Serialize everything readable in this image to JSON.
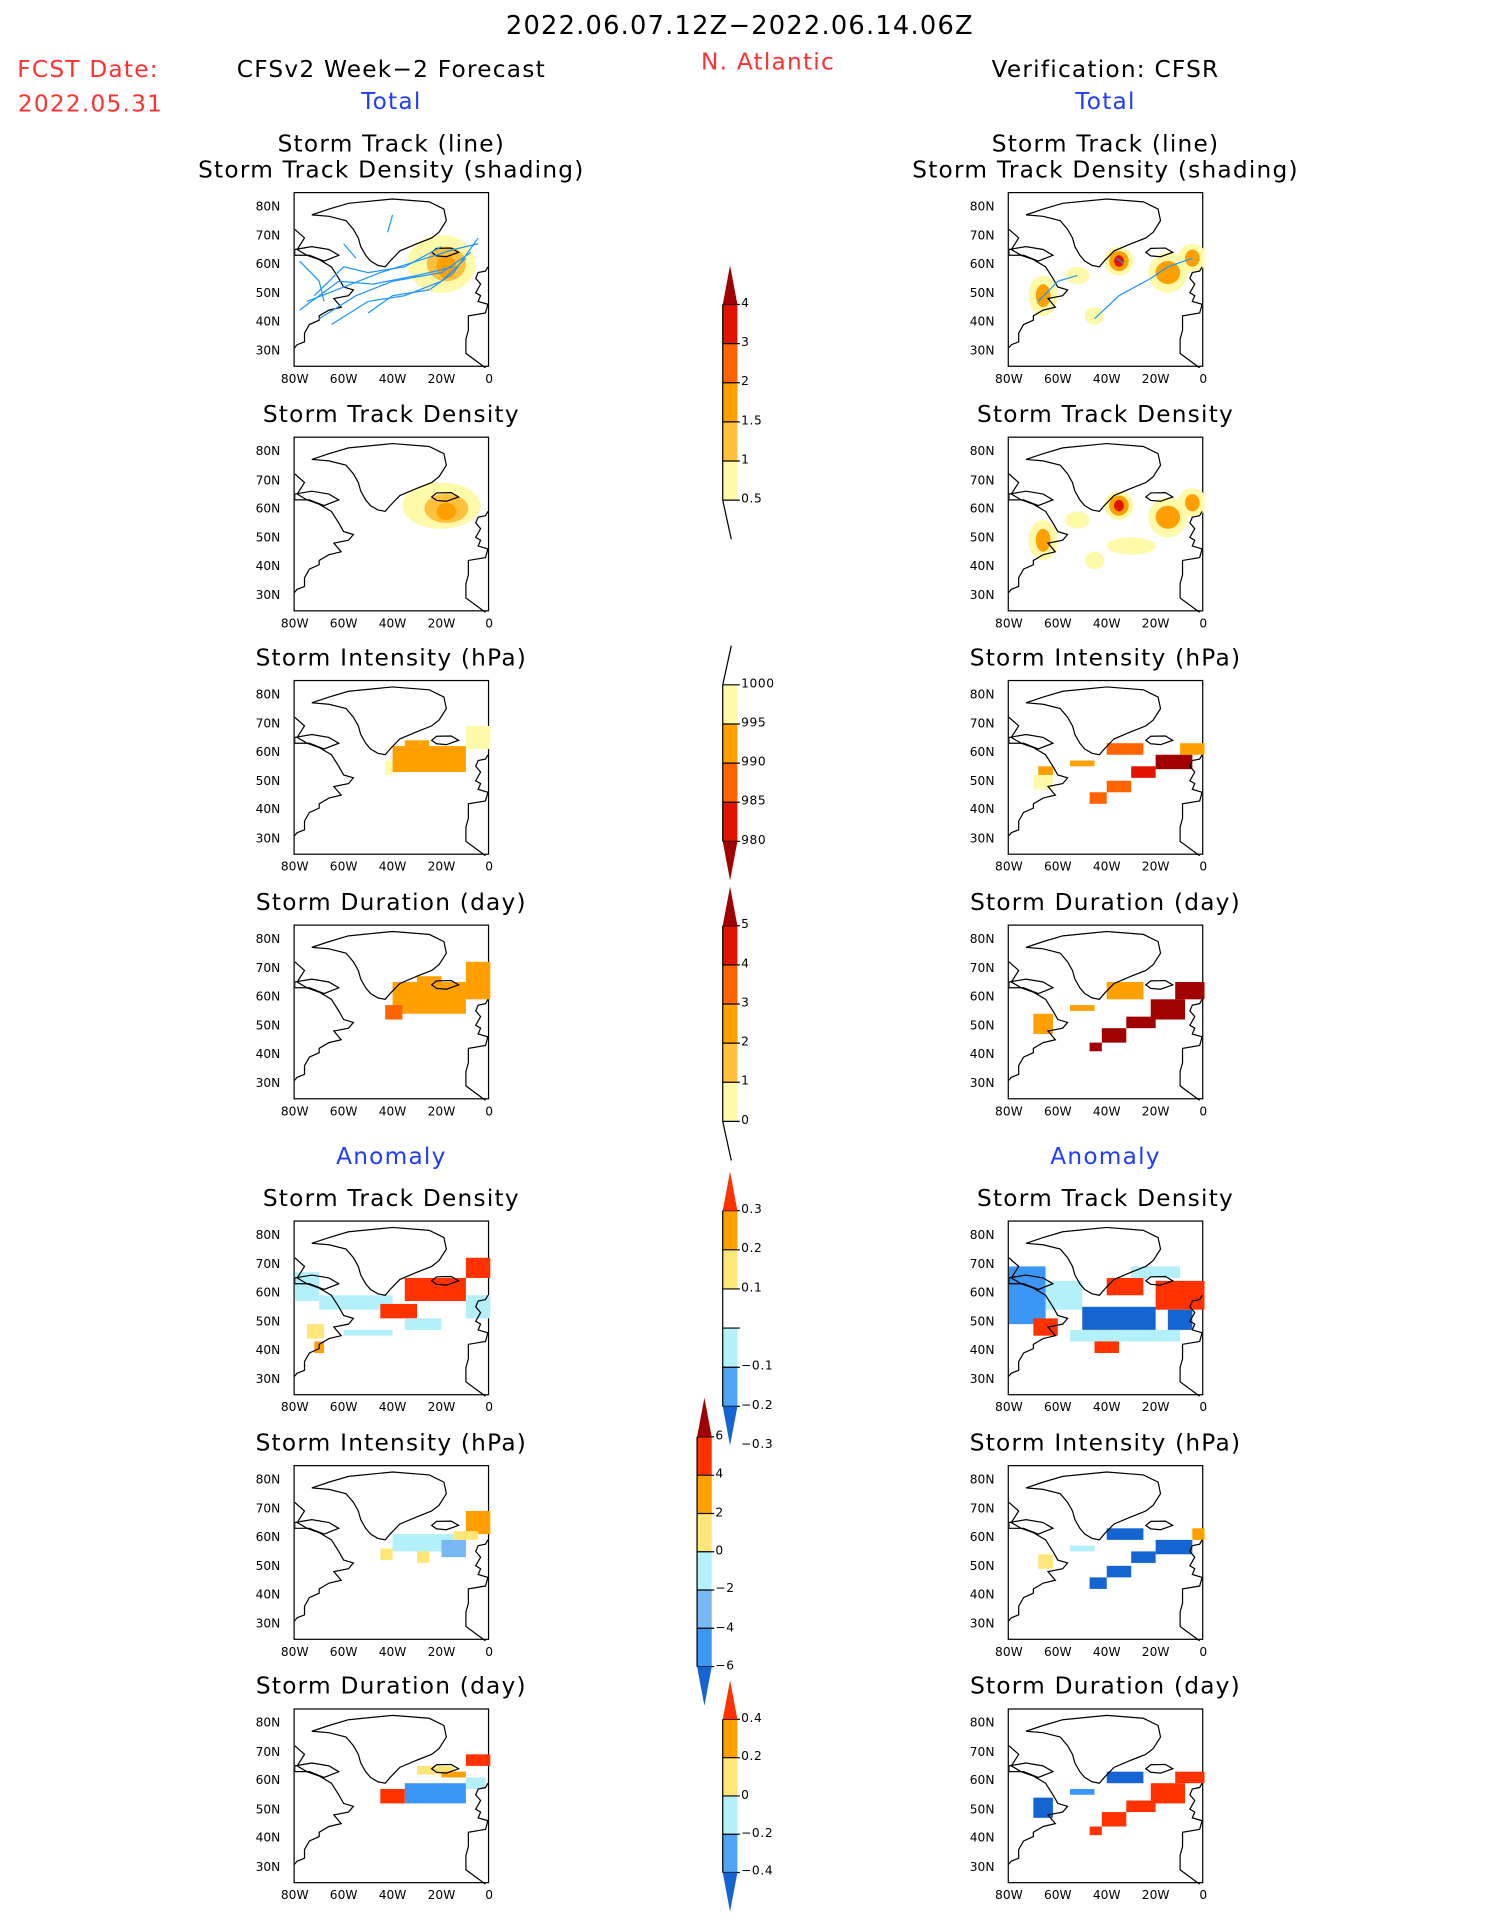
{
  "header": {
    "title": "2022.06.07.12Z−2022.06.14.06Z",
    "fcst_label": "FCST Date:",
    "fcst_date": "2022.05.31",
    "region": "N. Atlantic",
    "left_title": "CFSv2 Week−2 Forecast",
    "right_title": "Verification: CFSR",
    "left_total": "Total",
    "right_total": "Total",
    "left_anomaly": "Anomaly",
    "right_anomaly": "Anomaly"
  },
  "panels": [
    {
      "line1": "Storm Track (line)",
      "line2": "Storm Track Density (shading)"
    },
    {
      "line1": "Storm Track Density"
    },
    {
      "line1": "Storm Intensity (hPa)"
    },
    {
      "line1": "Storm Duration (day)"
    },
    {
      "line1": "Storm Track Density"
    },
    {
      "line1": "Storm Intensity (hPa)"
    },
    {
      "line1": "Storm Duration (day)"
    }
  ],
  "axes": {
    "lat": [
      "80N",
      "70N",
      "60N",
      "50N",
      "40N",
      "30N"
    ],
    "lon": [
      "80W",
      "60W",
      "40W",
      "20W",
      "0"
    ]
  },
  "colorbars": [
    {
      "name": "density-total",
      "labels": [
        "4",
        "3",
        "2",
        "1.5",
        "1",
        "0.5"
      ]
    },
    {
      "name": "intensity-total",
      "labels": [
        "1000",
        "995",
        "990",
        "985",
        "980"
      ]
    },
    {
      "name": "duration-total",
      "labels": [
        "5",
        "4",
        "3",
        "2",
        "1",
        "0"
      ]
    },
    {
      "name": "density-anomaly",
      "labels": [
        "0.3",
        "0.2",
        "0.1",
        "−0.1",
        "−0.2",
        "−0.3"
      ]
    },
    {
      "name": "intensity-anomaly",
      "labels": [
        "6",
        "4",
        "2",
        "0",
        "−2",
        "−4",
        "−6"
      ]
    },
    {
      "name": "duration-anomaly",
      "labels": [
        "0.4",
        "0.2",
        "0",
        "−0.2",
        "−0.4"
      ]
    }
  ],
  "colors": {
    "darkred": "#a00000",
    "red": "#e11400",
    "redorange": "#ff6400",
    "orange": "#ffa000",
    "lightorange": "#ffc03c",
    "pale": "#fffaaa",
    "yellow": "#ffe678",
    "white": "#ffffff",
    "lightblue": "#b4f0fa",
    "midblue": "#78b9f5",
    "blue": "#3c96f5",
    "blue2": "#50a5f5",
    "darkblue": "#1464d2",
    "brightred": "#ff3200",
    "track": "#1e96ff"
  }
}
